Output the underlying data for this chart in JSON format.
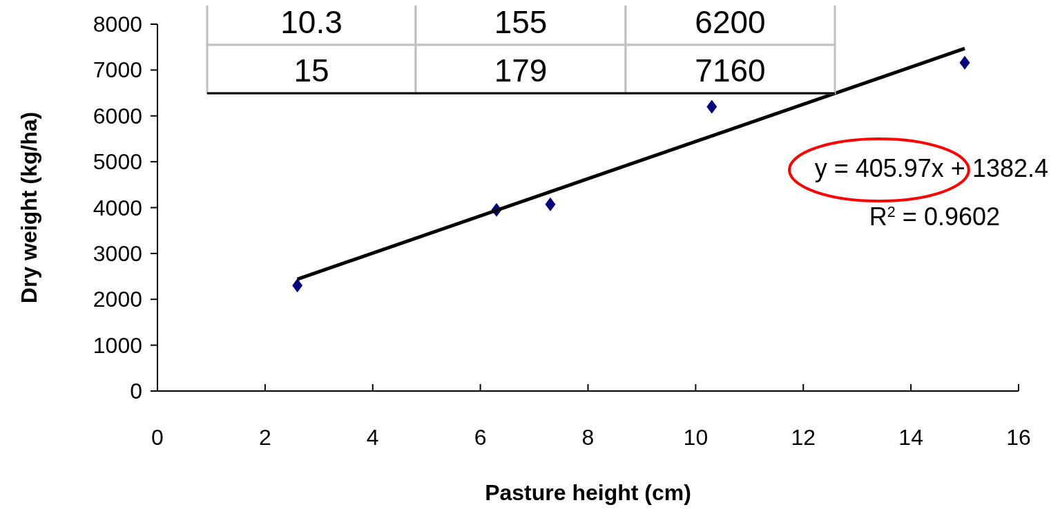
{
  "chart_data": {
    "type": "scatter",
    "xlabel": "Pasture height (cm)",
    "ylabel": "Dry weight (kg/ha)",
    "xlim": [
      0,
      16
    ],
    "xticks": [
      0,
      2,
      4,
      6,
      8,
      10,
      12,
      14,
      16
    ],
    "ylim": [
      0,
      8000
    ],
    "yticks": [
      0,
      1000,
      2000,
      3000,
      4000,
      5000,
      6000,
      7000,
      8000
    ],
    "grid": false,
    "marker": "diamond",
    "series": [
      {
        "color": "#000080",
        "x": [
          2.6,
          6.3,
          7.3,
          10.3,
          15
        ],
        "values": [
          2300,
          3950,
          4070,
          6200,
          7160
        ]
      },
      {
        "type": "line",
        "color": "#000000",
        "marker": "none",
        "line_style": "solid",
        "x": [
          2.6,
          15
        ],
        "values": [
          2440,
          7470
        ]
      }
    ],
    "annotations": [
      "y = 405.97x + 1382.4",
      "R$^{2}$ = 0.9602",
      "10.3",
      "155",
      "6200",
      "15",
      "179",
      "7160"
    ]
  }
}
